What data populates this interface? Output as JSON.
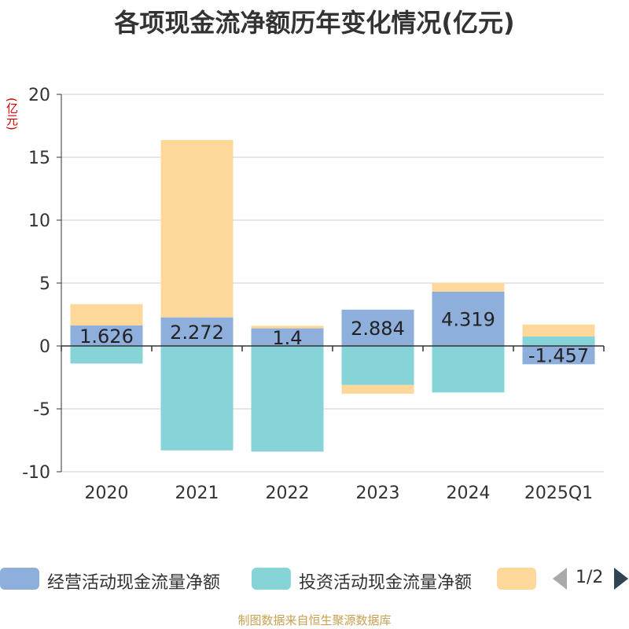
{
  "title": "各项现金流净额历年变化情况(亿元)",
  "unit_label": "(亿元)",
  "source": "制图数据来自恒生聚源数据库",
  "legend": {
    "items": [
      {
        "name": "经营活动现金流量净额",
        "color": "#8eaedc"
      },
      {
        "name": "投资活动现金流量净额",
        "color": "#86d4d8"
      },
      {
        "name": "",
        "color": "#fdd89a"
      }
    ],
    "page": "1/2"
  },
  "chart_data": {
    "type": "bar",
    "stacked": true,
    "categories": [
      "2020",
      "2021",
      "2022",
      "2023",
      "2024",
      "2025Q1"
    ],
    "ylim": [
      -10,
      20
    ],
    "yticks": [
      20,
      15,
      10,
      5,
      0,
      -5,
      -10
    ],
    "grid": true,
    "legend_position": "bottom",
    "series": [
      {
        "name": "经营活动现金流量净额",
        "color": "#8eaedc",
        "values": [
          1.626,
          2.272,
          1.4,
          2.884,
          4.319,
          -1.457
        ],
        "labels": [
          "1.626",
          "2.272",
          "1.4",
          "2.884",
          "4.319",
          "-1.457"
        ]
      },
      {
        "name": "投资活动现金流量净额",
        "color": "#86d4d8",
        "values": [
          -1.4,
          -8.3,
          -8.4,
          -3.1,
          -3.7,
          0.75
        ]
      },
      {
        "name": "",
        "color": "#fdd89a",
        "values": [
          1.7,
          14.1,
          0.2,
          -0.7,
          0.7,
          0.95
        ]
      }
    ]
  }
}
